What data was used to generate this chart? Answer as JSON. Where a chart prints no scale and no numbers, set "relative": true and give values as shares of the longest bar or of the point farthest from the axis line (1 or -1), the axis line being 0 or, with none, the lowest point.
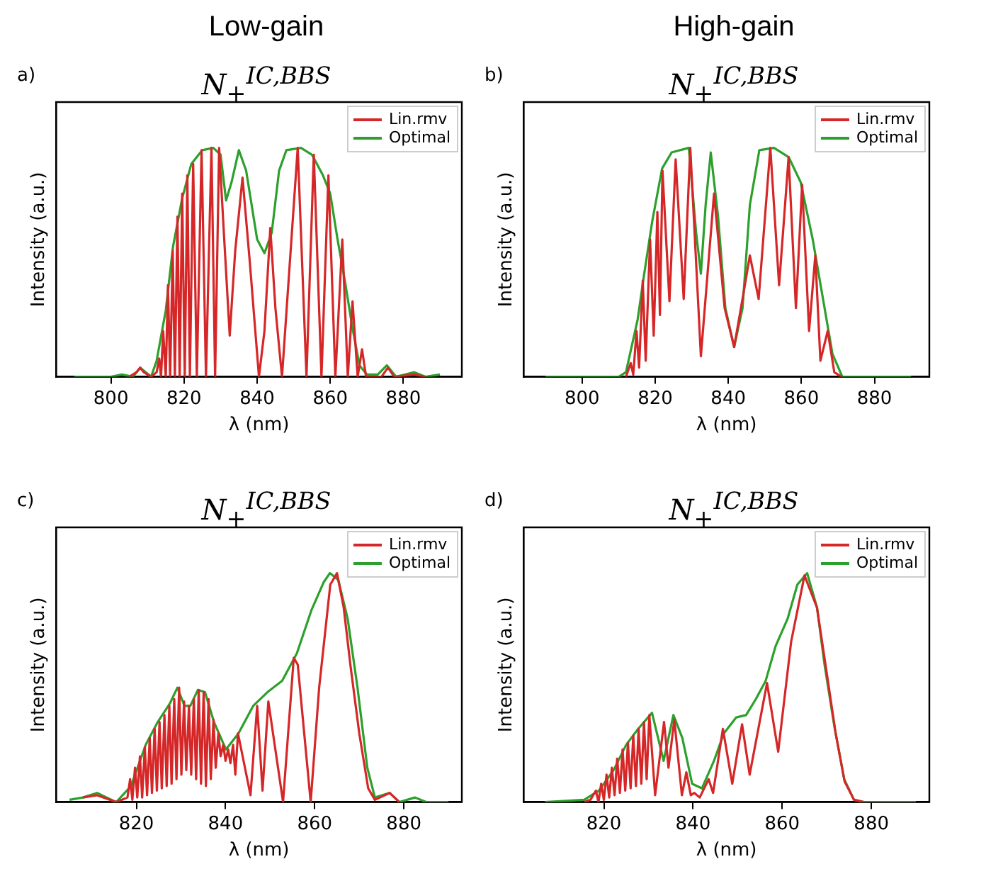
{
  "chart_data": [
    {
      "type": "line",
      "title": "N$_{+}$$^{IC,BBS}$",
      "xlabel": "λ (nm)",
      "ylabel": "Intensity (a.u.)",
      "annotations": [
        "Low-gain",
        "a)"
      ],
      "relative": true,
      "xlim": [
        785,
        896
      ],
      "xticks": [
        800,
        820,
        840,
        860,
        880
      ],
      "legend": "top right",
      "marker": "none",
      "series": [
        {
          "name": "Lin.rmv",
          "color": "#d62728",
          "x": [
            805,
            807,
            808,
            809,
            811,
            812.5,
            813.2,
            813.7,
            814.3,
            815.0,
            815.6,
            816.2,
            816.9,
            817.5,
            818.2,
            818.8,
            819.5,
            820.2,
            820.9,
            821.6,
            822.5,
            823.5,
            824.8,
            826,
            827.5,
            828.5,
            829.6,
            831,
            832.5,
            834,
            836,
            838,
            840.5,
            842,
            843.6,
            845,
            846.8,
            851.1,
            853.5,
            855.5,
            857.6,
            859.5,
            861.4,
            863.3,
            864.8,
            866.1,
            867.5,
            868.7,
            869.8,
            874,
            875.8,
            877.5,
            883,
            886
          ],
          "values": [
            0,
            0.02,
            0.04,
            0.02,
            0,
            0.02,
            0.08,
            0,
            0.2,
            0,
            0.4,
            0,
            0.55,
            0,
            0.7,
            0,
            0.8,
            0,
            0.88,
            0,
            0.93,
            0,
            0.99,
            0,
            1.0,
            0,
            1.0,
            0.6,
            0.18,
            0.55,
            0.87,
            0.5,
            0,
            0.2,
            0.65,
            0.3,
            0,
            1.0,
            0,
            0.97,
            0,
            0.88,
            0,
            0.6,
            0,
            0.33,
            0,
            0.12,
            0,
            0,
            0.04,
            0,
            0.01,
            0
          ]
        },
        {
          "name": "Optimal",
          "color": "#2ca02c",
          "x": [
            790,
            800,
            803,
            806,
            808,
            811,
            812.5,
            815,
            817,
            819.5,
            822,
            825,
            828,
            830,
            831.5,
            833,
            835,
            837,
            840,
            842,
            844,
            846,
            848,
            852,
            855,
            858,
            860,
            862,
            864,
            866,
            868,
            870,
            873,
            875.5,
            878,
            883,
            886,
            890
          ],
          "values": [
            0,
            0,
            0.01,
            0,
            0.04,
            0,
            0.07,
            0.29,
            0.57,
            0.78,
            0.93,
            0.99,
            1.0,
            0.97,
            0.77,
            0.85,
            0.99,
            0.9,
            0.6,
            0.54,
            0.63,
            0.9,
            0.99,
            1.0,
            0.97,
            0.88,
            0.8,
            0.6,
            0.42,
            0.22,
            0.05,
            0.01,
            0.01,
            0.05,
            0,
            0.02,
            0,
            0.01
          ]
        }
      ]
    },
    {
      "type": "line",
      "title": "N$_{+}$$^{IC,BBS}$",
      "xlabel": "λ (nm)",
      "ylabel": "Intensity (a.u.)",
      "annotations": [
        "High-gain",
        "b)"
      ],
      "relative": true,
      "xlim": [
        784,
        895
      ],
      "xticks": [
        800,
        820,
        840,
        860,
        880
      ],
      "legend": "top right",
      "marker": "none",
      "series": [
        {
          "name": "Lin.rmv",
          "color": "#d62728",
          "x": [
            812,
            813.3,
            814,
            814.9,
            815.6,
            816.6,
            817.4,
            818.6,
            819.6,
            820.6,
            821.3,
            822,
            823.9,
            825.6,
            827.8,
            829.6,
            832.5,
            836.1,
            839,
            841.6,
            844,
            845.9,
            848.3,
            851.5,
            853.9,
            856.5,
            858.5,
            860.2,
            862.1,
            863.8,
            865.2,
            867.2,
            869,
            871
          ],
          "values": [
            0,
            0.06,
            0.01,
            0.2,
            0.04,
            0.42,
            0.07,
            0.6,
            0.18,
            0.72,
            0.27,
            0.9,
            0.33,
            0.95,
            0.34,
            1.0,
            0.09,
            0.8,
            0.3,
            0.13,
            0.35,
            0.53,
            0.34,
            1.0,
            0.4,
            0.96,
            0.3,
            0.84,
            0.2,
            0.53,
            0.07,
            0.2,
            0.02,
            0
          ]
        },
        {
          "name": "Optimal",
          "color": "#2ca02c",
          "x": [
            790,
            810,
            812,
            815.2,
            817,
            819.2,
            821.9,
            824.5,
            829.2,
            831.2,
            832.5,
            833.8,
            835.2,
            837.2,
            839.2,
            841.6,
            843.9,
            845.9,
            848.5,
            852.5,
            856.5,
            859.8,
            863.1,
            865.8,
            868.5,
            871.2,
            880,
            890
          ],
          "values": [
            0,
            0,
            0.02,
            0.25,
            0.45,
            0.68,
            0.91,
            0.98,
            1.0,
            0.63,
            0.45,
            0.75,
            0.98,
            0.7,
            0.3,
            0.13,
            0.3,
            0.75,
            0.99,
            1.0,
            0.96,
            0.85,
            0.6,
            0.35,
            0.1,
            0,
            0,
            0
          ]
        }
      ]
    },
    {
      "type": "line",
      "title": "N$_{+}$$^{IC,BBS}$",
      "xlabel": "λ (nm)",
      "ylabel": "Intensity (a.u.)",
      "annotations": [
        "c)"
      ],
      "relative": true,
      "xlim": [
        802,
        893
      ],
      "xticks": [
        820,
        840,
        860,
        880
      ],
      "legend": "top right",
      "marker": "none",
      "series": [
        {
          "name": "Lin.rmv",
          "color": "#d62728",
          "x": [
            808,
            811.2,
            815.5,
            818,
            818.6,
            819.1,
            819.7,
            820.2,
            820.8,
            821.3,
            821.9,
            822.4,
            823,
            823.5,
            824.1,
            824.6,
            825.2,
            825.7,
            826.3,
            826.8,
            827.4,
            827.9,
            828.5,
            829,
            829.6,
            830.1,
            830.7,
            831.2,
            831.8,
            832.3,
            832.9,
            833.4,
            834,
            834.5,
            835.1,
            835.6,
            836.2,
            836.7,
            837.3,
            837.8,
            838.4,
            838.9,
            839.5,
            840,
            840.6,
            841.1,
            841.7,
            842.2,
            842.8,
            845.6,
            847.1,
            848.3,
            849.6,
            852.9,
            855.3,
            856.2,
            859.1,
            861,
            863.5,
            865,
            866.5,
            868,
            870,
            872,
            873.5,
            876.8,
            879
          ],
          "values": [
            0.02,
            0.03,
            0,
            0.02,
            0.1,
            0.01,
            0.15,
            0.02,
            0.2,
            0.02,
            0.24,
            0.03,
            0.28,
            0.04,
            0.32,
            0.05,
            0.35,
            0.06,
            0.38,
            0.07,
            0.42,
            0.08,
            0.45,
            0.1,
            0.5,
            0.12,
            0.44,
            0.14,
            0.42,
            0.12,
            0.45,
            0.1,
            0.49,
            0.08,
            0.48,
            0.07,
            0.45,
            0.1,
            0.36,
            0.15,
            0.3,
            0.2,
            0.25,
            0.18,
            0.23,
            0.17,
            0.25,
            0.12,
            0.3,
            0.03,
            0.42,
            0.05,
            0.44,
            0,
            0.63,
            0.6,
            0,
            0.5,
            0.95,
            1.0,
            0.85,
            0.6,
            0.3,
            0.06,
            0.01,
            0.04,
            0
          ]
        },
        {
          "name": "Optimal",
          "color": "#2ca02c",
          "x": [
            805,
            808,
            811.2,
            815.5,
            818.8,
            822.1,
            824.8,
            827.5,
            829.2,
            830.8,
            832.1,
            833.8,
            835.4,
            837.4,
            840.1,
            842.9,
            846.2,
            849.4,
            852.7,
            856,
            859.3,
            862,
            863.4,
            865.3,
            867.4,
            869.6,
            871.8,
            873.5,
            876.8,
            879,
            882.5,
            885,
            890
          ],
          "values": [
            0.01,
            0.02,
            0.04,
            0,
            0.07,
            0.25,
            0.35,
            0.43,
            0.5,
            0.42,
            0.42,
            0.49,
            0.48,
            0.35,
            0.23,
            0.3,
            0.42,
            0.48,
            0.53,
            0.65,
            0.84,
            0.96,
            1.0,
            0.97,
            0.8,
            0.5,
            0.15,
            0.02,
            0.04,
            0,
            0.02,
            0,
            0
          ]
        }
      ]
    },
    {
      "type": "line",
      "title": "N$_{+}$$^{IC,BBS}$",
      "xlabel": "λ (nm)",
      "ylabel": "Intensity (a.u.)",
      "annotations": [
        "d)"
      ],
      "relative": true,
      "xlim": [
        802,
        893
      ],
      "xticks": [
        820,
        840,
        860,
        880
      ],
      "legend": "top right",
      "marker": "none",
      "series": [
        {
          "name": "Lin.rmv",
          "color": "#d62728",
          "x": [
            815.6,
            817,
            818.2,
            818.8,
            819.4,
            820,
            820.6,
            821.2,
            821.8,
            822.4,
            823,
            823.6,
            824.2,
            824.8,
            825.4,
            826,
            826.6,
            827.2,
            827.8,
            828.4,
            829,
            829.6,
            830.2,
            831.5,
            833.5,
            834.5,
            835.8,
            837.5,
            838.5,
            839.5,
            840.3,
            841.5,
            843.5,
            844.5,
            846.7,
            848.8,
            851,
            852.7,
            856.6,
            859.1,
            862,
            865,
            867.8,
            872,
            874,
            876.1,
            878.3
          ],
          "values": [
            0,
            0.01,
            0.05,
            0,
            0.08,
            0.01,
            0.12,
            0.02,
            0.15,
            0.03,
            0.19,
            0.04,
            0.23,
            0.05,
            0.26,
            0.06,
            0.29,
            0.07,
            0.32,
            0.08,
            0.35,
            0.1,
            0.38,
            0.03,
            0.35,
            0.15,
            0.36,
            0.03,
            0.13,
            0.03,
            0.04,
            0.02,
            0.1,
            0.04,
            0.32,
            0.08,
            0.34,
            0.12,
            0.52,
            0.22,
            0.7,
            0.99,
            0.85,
            0.3,
            0.09,
            0.01,
            0
          ]
        },
        {
          "name": "Optimal",
          "color": "#2ca02c",
          "x": [
            806.8,
            815.6,
            818.9,
            822.2,
            825,
            827.7,
            830.8,
            833.4,
            835.6,
            837.6,
            839.8,
            842,
            844.7,
            846.9,
            849.7,
            851.9,
            854.1,
            856.3,
            858.5,
            861.2,
            863.4,
            865.6,
            867.8,
            869.5,
            871.7,
            873.9,
            876.1,
            878.3,
            890
          ],
          "values": [
            0,
            0.01,
            0.05,
            0.14,
            0.25,
            0.32,
            0.39,
            0.18,
            0.38,
            0.28,
            0.08,
            0.06,
            0.18,
            0.3,
            0.37,
            0.38,
            0.45,
            0.53,
            0.68,
            0.8,
            0.95,
            1.0,
            0.85,
            0.6,
            0.33,
            0.1,
            0.01,
            0,
            0
          ]
        }
      ]
    }
  ]
}
